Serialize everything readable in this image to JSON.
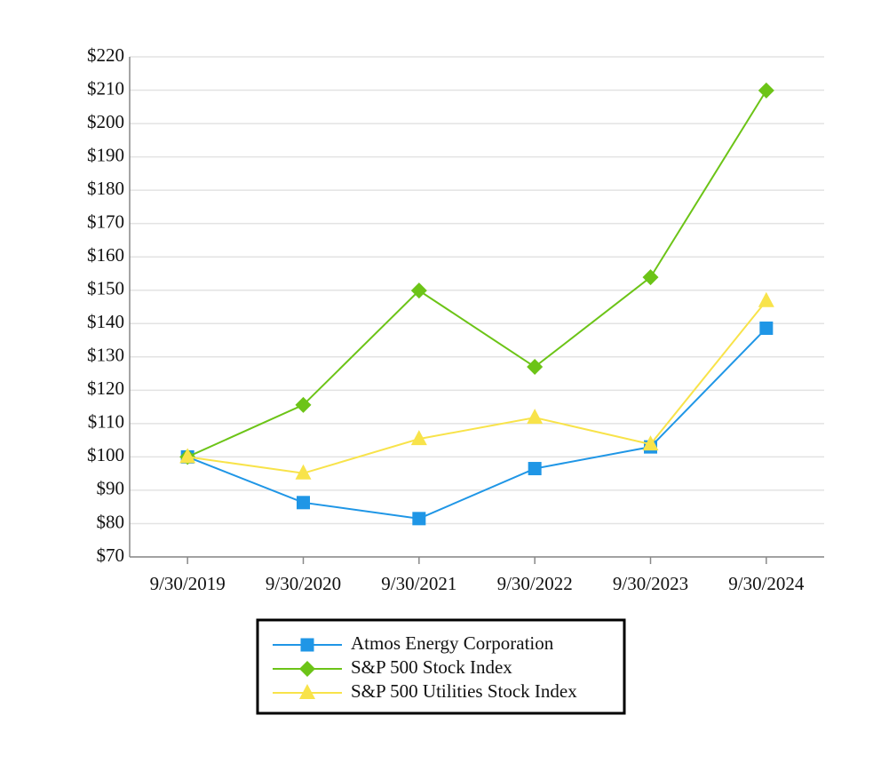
{
  "chart_data": {
    "type": "line",
    "categories": [
      "9/30/2019",
      "9/30/2020",
      "9/30/2021",
      "9/30/2022",
      "9/30/2023",
      "9/30/2024"
    ],
    "series": [
      {
        "name": "Atmos Energy Corporation",
        "color": "#1f96e6",
        "marker": "square",
        "values": [
          100,
          86.3,
          81.5,
          96.5,
          103,
          138.6
        ]
      },
      {
        "name": "S&P 500 Stock Index",
        "color": "#6cc417",
        "marker": "diamond",
        "values": [
          100,
          115.6,
          149.9,
          127,
          153.9,
          209.9
        ]
      },
      {
        "name": "S&P 500 Utilities Stock Index",
        "color": "#f8e34a",
        "marker": "triangle",
        "values": [
          100,
          95.1,
          105.4,
          111.8,
          103.8,
          146.8
        ]
      }
    ],
    "ylim": [
      70,
      220
    ],
    "yticks": [
      {
        "value": 70,
        "label": "$70"
      },
      {
        "value": 80,
        "label": "$80"
      },
      {
        "value": 90,
        "label": "$90"
      },
      {
        "value": 100,
        "label": "$100"
      },
      {
        "value": 110,
        "label": "$110"
      },
      {
        "value": 120,
        "label": "$120"
      },
      {
        "value": 130,
        "label": "$130"
      },
      {
        "value": 140,
        "label": "$140"
      },
      {
        "value": 150,
        "label": "$150"
      },
      {
        "value": 160,
        "label": "$160"
      },
      {
        "value": 170,
        "label": "$170"
      },
      {
        "value": 180,
        "label": "$180"
      },
      {
        "value": 190,
        "label": "$190"
      },
      {
        "value": 200,
        "label": "$200"
      },
      {
        "value": 210,
        "label": "$210"
      },
      {
        "value": 220,
        "label": "$220"
      }
    ],
    "grid": true,
    "legend": "bottom"
  }
}
